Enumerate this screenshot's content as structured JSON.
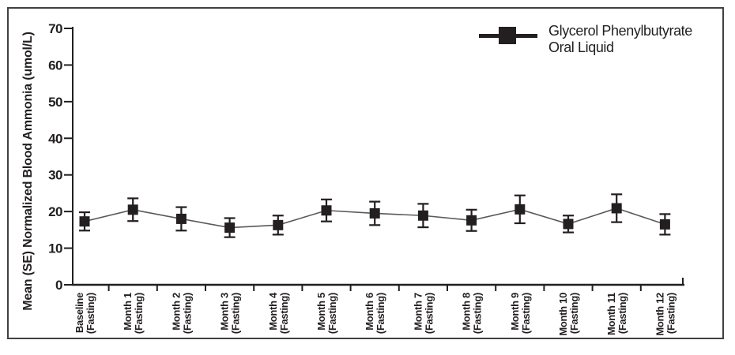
{
  "chart_data": {
    "type": "line",
    "title": "",
    "xlabel": "",
    "ylabel": "Mean (SE) Normalized Blood Ammonia (umol/L)",
    "ylim": [
      0,
      70
    ],
    "ytick_step": 10,
    "yticks": [
      0,
      10,
      20,
      30,
      40,
      50,
      60,
      70
    ],
    "grid": false,
    "legend_position": "top-right",
    "error_bars": "SE",
    "categories": [
      "Baseline",
      "Month 1",
      "Month 2",
      "Month 3",
      "Month 4",
      "Month 5",
      "Month 6",
      "Month 7",
      "Month 8",
      "Month 9",
      "Month 10",
      "Month 11",
      "Month 12"
    ],
    "category_sublabel": "(Fasting)",
    "series": [
      {
        "name": "Glycerol Phenylbutyrate Oral Liquid",
        "marker": "filled-square",
        "values": [
          17.3,
          20.5,
          18.0,
          15.6,
          16.3,
          20.3,
          19.5,
          18.9,
          17.6,
          20.6,
          16.6,
          20.9,
          16.5
        ],
        "se": [
          2.5,
          3.1,
          3.2,
          2.6,
          2.6,
          3.0,
          3.2,
          3.2,
          2.9,
          3.8,
          2.3,
          3.8,
          2.8
        ]
      }
    ]
  },
  "legend": {
    "label_line1": "Glycerol Phenylbutyrate",
    "label_line2": "Oral Liquid",
    "marker": "square-on-line"
  },
  "colors": {
    "ink": "#231f20",
    "series_line": "#58595b",
    "frame_border": "#414042",
    "background": "#ffffff"
  }
}
